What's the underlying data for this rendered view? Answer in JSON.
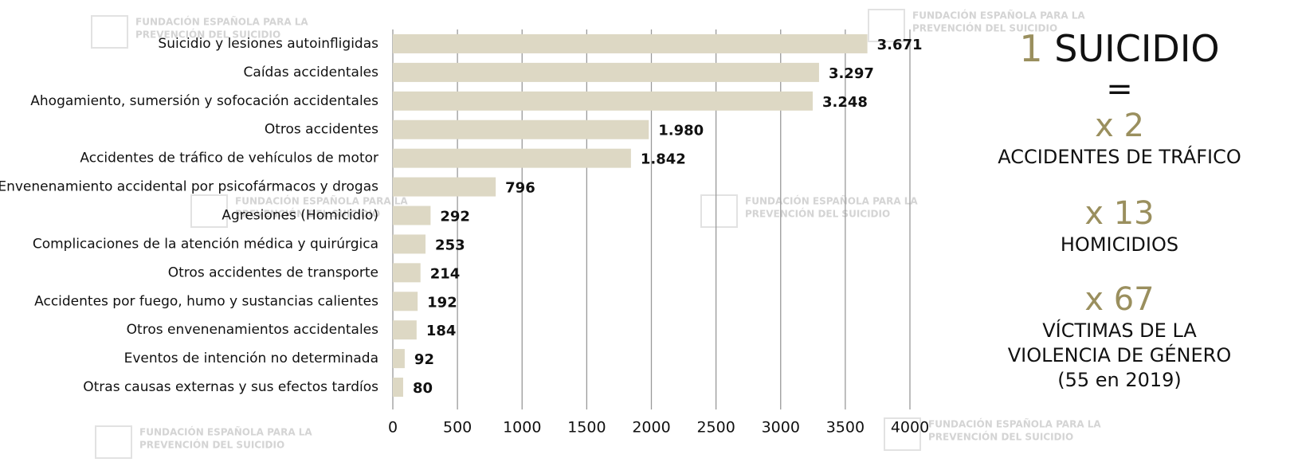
{
  "chart_data": {
    "type": "hbar",
    "categories": [
      "Suicidio y lesiones autoinfligidas",
      "Caídas accidentales",
      "Ahogamiento, sumersión y sofocación accidentales",
      "Otros accidentes",
      "Accidentes de tráfico de vehículos de motor",
      "Envenenamiento accidental por psicofármacos y drogas",
      "Agresiones (Homicidio)",
      "Complicaciones de la atención médica y quirúrgica",
      "Otros accidentes de transporte",
      "Accidentes por fuego, humo y sustancias calientes",
      "Otros envenenamientos accidentales",
      "Eventos de intención no determinada",
      "Otras causas externas y sus efectos tardíos"
    ],
    "values": [
      3671,
      3297,
      3248,
      1980,
      1842,
      796,
      292,
      253,
      214,
      192,
      184,
      92,
      80
    ],
    "value_labels": [
      "3.671",
      "3.297",
      "3.248",
      "1.980",
      "1.842",
      "796",
      "292",
      "253",
      "214",
      "192",
      "184",
      "92",
      "80"
    ],
    "color": "#ddd8c4",
    "xlim": [
      0,
      4000
    ],
    "xticks": [
      0,
      500,
      1000,
      1500,
      2000,
      2500,
      3000,
      3500,
      4000
    ],
    "grid": true
  },
  "panel": {
    "one": "1",
    "suicide": "SUICIDIO",
    "equals": "=",
    "rows": [
      {
        "factor": "x 2",
        "lines": [
          "ACCIDENTES DE TRÁFICO"
        ]
      },
      {
        "factor": "x 13",
        "lines": [
          "HOMICIDIOS"
        ]
      },
      {
        "factor": "x 67",
        "lines": [
          "VÍCTIMAS DE LA",
          "VIOLENCIA DE GÉNERO",
          "(55 en 2019)"
        ]
      }
    ]
  },
  "watermark": [
    "FUNDACIÓN ESPAÑOLA PARA LA",
    "PREVENCIÓN DEL SUICIDIO"
  ]
}
